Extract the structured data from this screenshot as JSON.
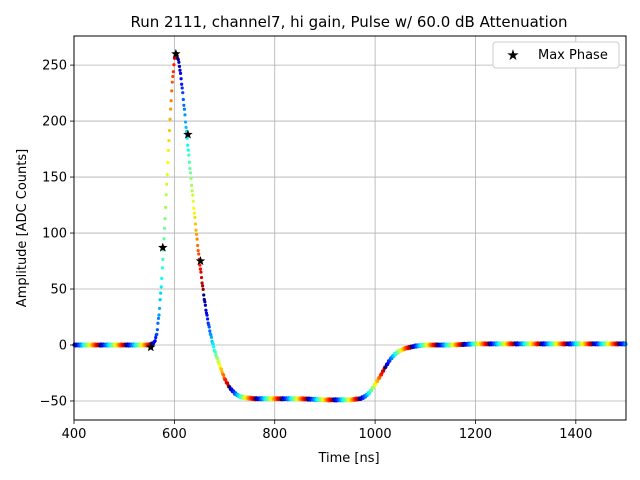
{
  "chart_data": {
    "type": "scatter",
    "title": "Run 2111, channel7, hi gain, Pulse w/ 60.0 dB Attenuation",
    "xlabel": "Time [ns]",
    "ylabel": "Amplitude [ADC Counts]",
    "xlim": [
      400,
      1500
    ],
    "ylim": [
      -67,
      276
    ],
    "xticks": [
      400,
      600,
      800,
      1000,
      1200,
      1400
    ],
    "yticks": [
      -50,
      0,
      50,
      100,
      150,
      200,
      250
    ],
    "grid": true,
    "legend_position": "top-right",
    "colormap": "jet",
    "pulse_curve": {
      "x": [
        400,
        540,
        550,
        560,
        565,
        570,
        575,
        580,
        585,
        590,
        595,
        600,
        605,
        610,
        615,
        620,
        625,
        630,
        635,
        640,
        645,
        650,
        655,
        660,
        665,
        670,
        675,
        680,
        690,
        700,
        710,
        720,
        730,
        740,
        760,
        780,
        800,
        850,
        900,
        950,
        970,
        980,
        990,
        1000,
        1010,
        1020,
        1030,
        1040,
        1050,
        1060,
        1080,
        1100,
        1150,
        1200,
        1300,
        1400,
        1500
      ],
      "y": [
        0,
        0,
        0,
        2,
        10,
        30,
        60,
        100,
        145,
        190,
        230,
        255,
        260,
        250,
        232,
        210,
        187,
        163,
        140,
        117,
        95,
        75,
        57,
        40,
        26,
        14,
        4,
        -5,
        -18,
        -30,
        -38,
        -43,
        -46,
        -47,
        -48,
        -48,
        -48,
        -48,
        -49,
        -49,
        -48,
        -46,
        -42,
        -35,
        -28,
        -20,
        -13,
        -8,
        -5,
        -3,
        -1,
        0,
        0,
        1,
        1,
        1,
        1
      ]
    },
    "series": [
      {
        "name": "Max Phase",
        "marker": "star",
        "color": "#000000",
        "x": [
          553,
          577,
          603,
          627,
          652
        ],
        "y": [
          -2,
          87,
          260,
          188,
          75
        ]
      }
    ]
  }
}
